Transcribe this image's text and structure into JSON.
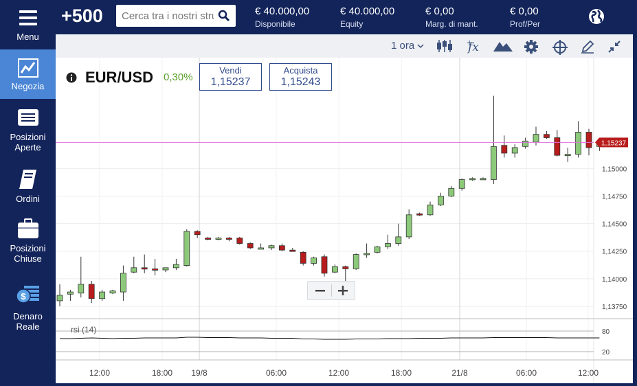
{
  "sidebar": {
    "items": [
      {
        "label": "Menu",
        "icon": "hamburger-icon"
      },
      {
        "label": "Negozia",
        "icon": "chart-line-icon",
        "active": true
      },
      {
        "label": "Posizioni Aperte",
        "label_l1": "Posizioni",
        "label_l2": "Aperte",
        "icon": "list-icon"
      },
      {
        "label": "Ordini",
        "icon": "book-icon"
      },
      {
        "label": "Posizioni Chiuse",
        "label_l1": "Posizioni",
        "label_l2": "Chiuse",
        "icon": "briefcase-icon"
      },
      {
        "label": "Denaro Reale",
        "label_l1": "Denaro",
        "label_l2": "Reale",
        "icon": "money-icon"
      }
    ]
  },
  "header": {
    "logo": "+500",
    "search_placeholder": "Cerca tra i nostri strumenti",
    "stats": [
      {
        "value": "€ 40.000,00",
        "label": "Disponibile"
      },
      {
        "value": "€ 40.000,00",
        "label": "Equity"
      },
      {
        "value": "€ 0,00",
        "label": "Marg. di mant."
      },
      {
        "value": "€ 0,00",
        "label": "Prof/Per"
      }
    ],
    "globe_icon": "globe-icon"
  },
  "toolbar": {
    "timeframe": "1 ora",
    "icons": [
      "candles-icon",
      "fx-icon",
      "mountain-icon",
      "gear-icon",
      "crosshair-icon",
      "pencil-icon",
      "collapse-icon"
    ]
  },
  "instrument": {
    "symbol": "EUR/USD",
    "change": "0,30%",
    "sell_label": "Vendi",
    "sell_price": "1,15237",
    "buy_label": "Acquista",
    "buy_price": "1,15243",
    "current_price_tag": "1,15237"
  },
  "indicator": {
    "label": "rsi (14)",
    "levels": [
      "80",
      "20"
    ]
  },
  "colors": {
    "navy": "#13245a",
    "accent_blue": "#4b86d6",
    "up_candle": "#8cc97a",
    "down_candle": "#b81c1c",
    "change_green": "#5aa02c",
    "price_line": "#e070e0"
  },
  "chart_data": {
    "type": "candlestick",
    "y_ticks": [
      "1,15000",
      "1,14750",
      "1,14500",
      "1,14250",
      "1,14000",
      "1,13750"
    ],
    "y_tick_values": [
      1.15,
      1.1475,
      1.145,
      1.1425,
      1.14,
      1.1375
    ],
    "ylim": [
      1.1365,
      1.1595
    ],
    "x_ticks": [
      "12:00",
      "18:00",
      "19/8",
      "06:00",
      "12:00",
      "18:00",
      "21/8",
      "06:00",
      "12:00"
    ],
    "current_price": 1.15237,
    "candles": [
      {
        "o": 1.138,
        "h": 1.1395,
        "l": 1.1375,
        "c": 1.1385
      },
      {
        "o": 1.1386,
        "h": 1.139,
        "l": 1.138,
        "c": 1.1388
      },
      {
        "o": 1.1387,
        "h": 1.142,
        "l": 1.1383,
        "c": 1.1395
      },
      {
        "o": 1.1395,
        "h": 1.1398,
        "l": 1.1378,
        "c": 1.1382
      },
      {
        "o": 1.1382,
        "h": 1.139,
        "l": 1.138,
        "c": 1.1388
      },
      {
        "o": 1.1387,
        "h": 1.139,
        "l": 1.1386,
        "c": 1.1389
      },
      {
        "o": 1.1388,
        "h": 1.1412,
        "l": 1.138,
        "c": 1.1405
      },
      {
        "o": 1.1406,
        "h": 1.142,
        "l": 1.1405,
        "c": 1.141
      },
      {
        "o": 1.141,
        "h": 1.1422,
        "l": 1.1405,
        "c": 1.1409
      },
      {
        "o": 1.1409,
        "h": 1.1418,
        "l": 1.1403,
        "c": 1.1408
      },
      {
        "o": 1.1408,
        "h": 1.141,
        "l": 1.1406,
        "c": 1.141
      },
      {
        "o": 1.141,
        "h": 1.1418,
        "l": 1.1408,
        "c": 1.1413
      },
      {
        "o": 1.1412,
        "h": 1.1445,
        "l": 1.1411,
        "c": 1.1443
      },
      {
        "o": 1.1443,
        "h": 1.1444,
        "l": 1.1437,
        "c": 1.144
      },
      {
        "o": 1.1437,
        "h": 1.1438,
        "l": 1.1435,
        "c": 1.1436
      },
      {
        "o": 1.1436,
        "h": 1.1438,
        "l": 1.1435,
        "c": 1.1437
      },
      {
        "o": 1.1437,
        "h": 1.1438,
        "l": 1.1434,
        "c": 1.1436
      },
      {
        "o": 1.1437,
        "h": 1.1438,
        "l": 1.1431,
        "c": 1.1432
      },
      {
        "o": 1.1432,
        "h": 1.1433,
        "l": 1.1427,
        "c": 1.1428
      },
      {
        "o": 1.1428,
        "h": 1.1432,
        "l": 1.1427,
        "c": 1.1428
      },
      {
        "o": 1.1428,
        "h": 1.1431,
        "l": 1.1426,
        "c": 1.143
      },
      {
        "o": 1.143,
        "h": 1.1432,
        "l": 1.1425,
        "c": 1.1426
      },
      {
        "o": 1.1426,
        "h": 1.1428,
        "l": 1.1425,
        "c": 1.1425
      },
      {
        "o": 1.1424,
        "h": 1.1425,
        "l": 1.1412,
        "c": 1.1414
      },
      {
        "o": 1.1414,
        "h": 1.142,
        "l": 1.1412,
        "c": 1.1419
      },
      {
        "o": 1.142,
        "h": 1.1422,
        "l": 1.1402,
        "c": 1.1405
      },
      {
        "o": 1.1406,
        "h": 1.1413,
        "l": 1.1405,
        "c": 1.1411
      },
      {
        "o": 1.1411,
        "h": 1.1412,
        "l": 1.1394,
        "c": 1.1409
      },
      {
        "o": 1.1409,
        "h": 1.1423,
        "l": 1.1408,
        "c": 1.1422
      },
      {
        "o": 1.1422,
        "h": 1.1432,
        "l": 1.1419,
        "c": 1.1423
      },
      {
        "o": 1.1424,
        "h": 1.143,
        "l": 1.1423,
        "c": 1.1429
      },
      {
        "o": 1.1429,
        "h": 1.144,
        "l": 1.1427,
        "c": 1.1432
      },
      {
        "o": 1.1432,
        "h": 1.145,
        "l": 1.143,
        "c": 1.1438
      },
      {
        "o": 1.1438,
        "h": 1.1463,
        "l": 1.1436,
        "c": 1.1458
      },
      {
        "o": 1.1459,
        "h": 1.146,
        "l": 1.1457,
        "c": 1.1458
      },
      {
        "o": 1.1458,
        "h": 1.147,
        "l": 1.1457,
        "c": 1.1467
      },
      {
        "o": 1.1467,
        "h": 1.1478,
        "l": 1.1466,
        "c": 1.1475
      },
      {
        "o": 1.1475,
        "h": 1.1484,
        "l": 1.1474,
        "c": 1.1482
      },
      {
        "o": 1.1482,
        "h": 1.1491,
        "l": 1.148,
        "c": 1.149
      },
      {
        "o": 1.149,
        "h": 1.1492,
        "l": 1.1489,
        "c": 1.1491
      },
      {
        "o": 1.1491,
        "h": 1.1492,
        "l": 1.149,
        "c": 1.1491
      },
      {
        "o": 1.149,
        "h": 1.1566,
        "l": 1.1486,
        "c": 1.152
      },
      {
        "o": 1.1521,
        "h": 1.153,
        "l": 1.151,
        "c": 1.1514
      },
      {
        "o": 1.1514,
        "h": 1.1522,
        "l": 1.151,
        "c": 1.1519
      },
      {
        "o": 1.152,
        "h": 1.1528,
        "l": 1.1518,
        "c": 1.1525
      },
      {
        "o": 1.1524,
        "h": 1.1538,
        "l": 1.1521,
        "c": 1.1531
      },
      {
        "o": 1.1531,
        "h": 1.1534,
        "l": 1.1527,
        "c": 1.1528
      },
      {
        "o": 1.1528,
        "h": 1.1535,
        "l": 1.1511,
        "c": 1.1512
      },
      {
        "o": 1.1512,
        "h": 1.1519,
        "l": 1.1506,
        "c": 1.1513
      },
      {
        "o": 1.1513,
        "h": 1.1543,
        "l": 1.151,
        "c": 1.1533
      },
      {
        "o": 1.1533,
        "h": 1.1536,
        "l": 1.1512,
        "c": 1.1519
      },
      {
        "o": 1.152,
        "h": 1.1528,
        "l": 1.1516,
        "c": 1.1524
      }
    ],
    "rsi": [
      58,
      58,
      59,
      60,
      59,
      58,
      59,
      59,
      60,
      60,
      60,
      60,
      62,
      62,
      61,
      61,
      61,
      60,
      60,
      60,
      59,
      59,
      59,
      57,
      57,
      56,
      56,
      56,
      57,
      57,
      57,
      58,
      58,
      58,
      59,
      59,
      59,
      60,
      60,
      60,
      60,
      61,
      61,
      61,
      61,
      61,
      61,
      60,
      60,
      60,
      60,
      60
    ]
  }
}
